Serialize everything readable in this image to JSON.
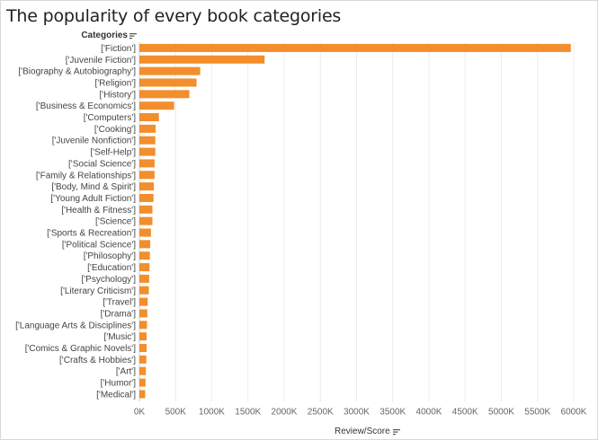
{
  "chart_data": {
    "type": "bar",
    "orientation": "horizontal",
    "title": "The popularity of every book categories",
    "ylabel": "Categories",
    "xlabel": "Review/Score",
    "categories": [
      "['Fiction']",
      "['Juvenile Fiction']",
      "['Biography & Autobiography']",
      "['Religion']",
      "['History']",
      "['Business & Economics']",
      "['Computers']",
      "['Cooking']",
      "['Juvenile Nonfiction']",
      "['Self-Help']",
      "['Social Science']",
      "['Family & Relationships']",
      "['Body, Mind & Spirit']",
      "['Young Adult Fiction']",
      "['Health & Fitness']",
      "['Science']",
      "['Sports & Recreation']",
      "['Political Science']",
      "['Philosophy']",
      "['Education']",
      "['Psychology']",
      "['Literary Criticism']",
      "['Travel']",
      "['Drama']",
      "['Language Arts & Disciplines']",
      "['Music']",
      "['Comics & Graphic Novels']",
      "['Crafts & Hobbies']",
      "['Art']",
      "['Humor']",
      "['Medical']"
    ],
    "values": [
      5960000,
      1730000,
      840000,
      790000,
      690000,
      480000,
      270000,
      225000,
      220000,
      220000,
      210000,
      210000,
      200000,
      195000,
      180000,
      180000,
      160000,
      150000,
      145000,
      140000,
      135000,
      130000,
      115000,
      110000,
      105000,
      100000,
      100000,
      95000,
      90000,
      85000,
      80000
    ],
    "xlim": [
      0,
      6000000
    ],
    "xticks": [
      "0K",
      "500K",
      "1000K",
      "1500K",
      "2000K",
      "2500K",
      "3000K",
      "3500K",
      "4000K",
      "4500K",
      "5000K",
      "5500K",
      "6000K"
    ],
    "bar_color": "#F28E2B",
    "gridlines": "vertical"
  },
  "icons": {
    "header_sort": "sort-icon",
    "axis_sort": "sort-icon"
  }
}
